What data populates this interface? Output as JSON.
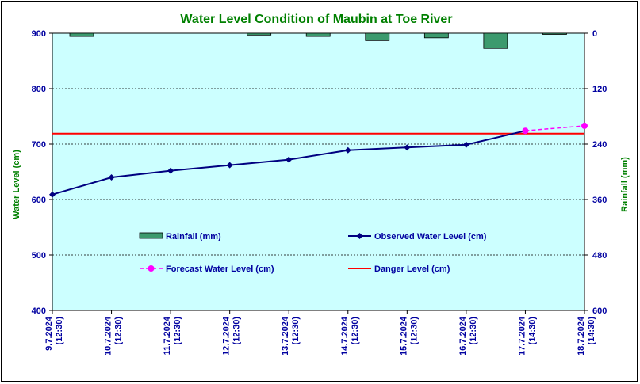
{
  "colors": {
    "plot_bg": "#ccffff",
    "title": "#008000",
    "axis_text": "#0000a0",
    "axis_label": "#008000",
    "observed": "#000080",
    "forecast": "#ff00ff",
    "danger": "#ff0000",
    "rainfall": "#3c9a6e"
  },
  "chart_data": {
    "type": "line",
    "title": "Water Level Condition of  Maubin at Toe River",
    "ylabel_left": "Water Level (cm)",
    "ylabel_right": "Rainfall (mm)",
    "ylim_left": [
      400,
      900
    ],
    "yticks_left": [
      400,
      500,
      600,
      700,
      800,
      900
    ],
    "ylim_right_inverted": [
      0,
      600
    ],
    "yticks_right": [
      0,
      120,
      240,
      360,
      480,
      600
    ],
    "grid": true,
    "categories": [
      {
        "date": "9.7.2024",
        "time": "(12:30)"
      },
      {
        "date": "10.7.2024",
        "time": "(12:30)"
      },
      {
        "date": "11.7.2024",
        "time": "(12:30)"
      },
      {
        "date": "12.7.2024",
        "time": "(12:30)"
      },
      {
        "date": "13.7.2024",
        "time": "(12:30)"
      },
      {
        "date": "14.7.2024",
        "time": "(12:30)"
      },
      {
        "date": "15.7.2024",
        "time": "(12:30)"
      },
      {
        "date": "16.7.2024",
        "time": "(12:30)"
      },
      {
        "date": "17.7.2024",
        "time": "(14:30)"
      },
      {
        "date": "18.7.2024",
        "time": "(14:30)"
      }
    ],
    "rainfall": {
      "name": "Rainfall (mm)",
      "values": [
        7,
        null,
        null,
        4,
        7,
        16,
        10,
        33,
        1,
        null
      ]
    },
    "observed": {
      "name": "Observed Water Level (cm)",
      "values": [
        609,
        640,
        652,
        662,
        672,
        689,
        694,
        699,
        null,
        null
      ]
    },
    "forecast": {
      "name": "Forecast Water Level (cm)",
      "values": [
        null,
        null,
        null,
        null,
        null,
        null,
        null,
        null,
        724,
        733
      ]
    },
    "danger": {
      "name": "Danger Level (cm)",
      "value": 719
    },
    "legend": [
      {
        "key": "rainfall",
        "label": "Rainfall (mm)"
      },
      {
        "key": "observed",
        "label": "Observed Water Level (cm)"
      },
      {
        "key": "forecast",
        "label": "Forecast Water Level (cm)"
      },
      {
        "key": "danger",
        "label": "Danger Level (cm)"
      }
    ]
  }
}
